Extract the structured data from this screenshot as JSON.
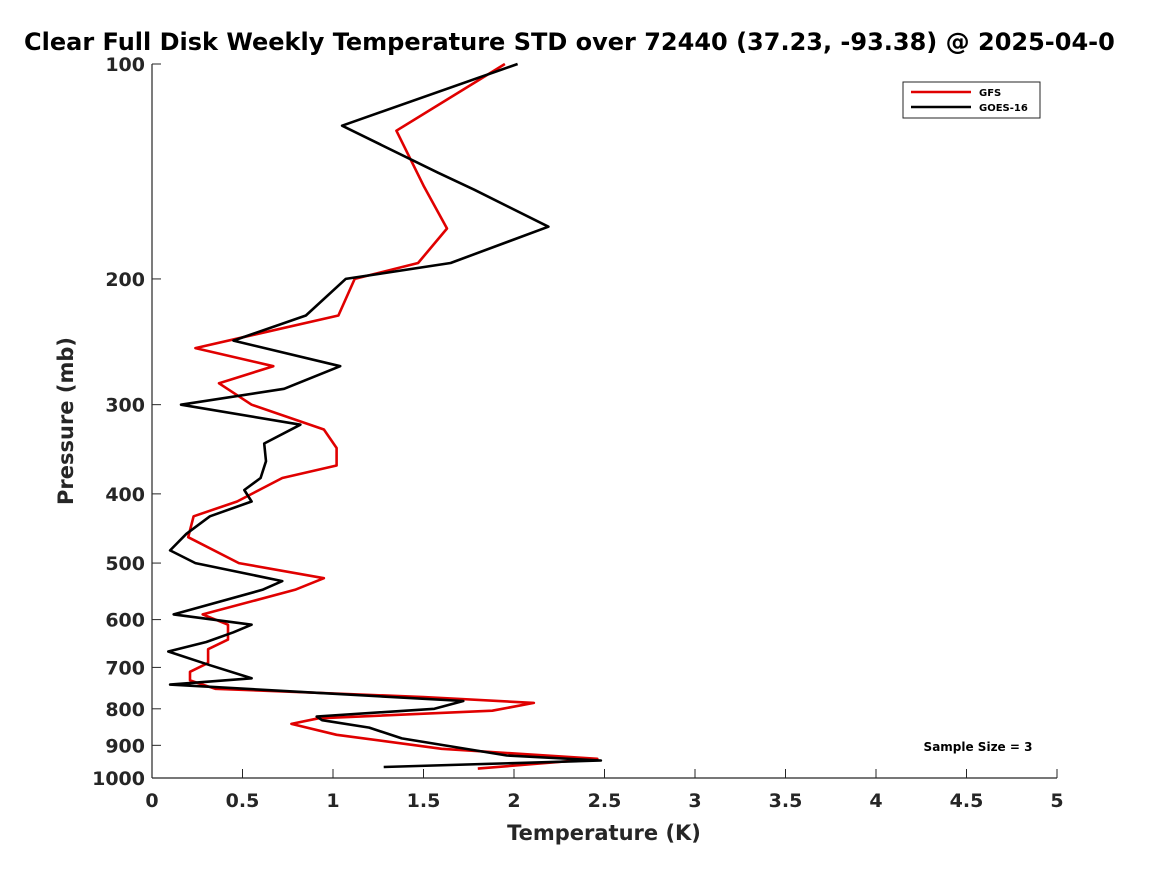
{
  "chart_data": {
    "type": "line",
    "title": "Clear Full Disk Weekly Temperature STD over 72440 (37.23, -93.38) @ 2025-04-0",
    "xlabel": "Temperature (K)",
    "ylabel": "Pressure (mb)",
    "xlim": [
      0,
      5
    ],
    "ylim": [
      100,
      1000
    ],
    "y_scale": "log",
    "y_reversed": true,
    "x_ticks": [
      "0",
      "0.5",
      "1",
      "1.5",
      "2",
      "2.5",
      "3",
      "3.5",
      "4",
      "4.5",
      "5"
    ],
    "x_tick_values": [
      0,
      0.5,
      1,
      1.5,
      2,
      2.5,
      3,
      3.5,
      4,
      4.5,
      5
    ],
    "y_ticks": [
      "100",
      "200",
      "300",
      "400",
      "500",
      "600",
      "700",
      "800",
      "900",
      "1000"
    ],
    "y_tick_values": [
      100,
      200,
      300,
      400,
      500,
      600,
      700,
      800,
      900,
      1000
    ],
    "grid": false,
    "legend_position": "top-right",
    "annotation": "Sample Size = 3",
    "series": [
      {
        "name": "GFS",
        "color": "#e00000",
        "points": [
          [
            1.95,
            100
          ],
          [
            1.35,
            124
          ],
          [
            1.5,
            148
          ],
          [
            1.63,
            170
          ],
          [
            1.47,
            190
          ],
          [
            1.12,
            200
          ],
          [
            1.03,
            225
          ],
          [
            0.24,
            250
          ],
          [
            0.67,
            265
          ],
          [
            0.37,
            280
          ],
          [
            0.55,
            300
          ],
          [
            0.95,
            325
          ],
          [
            1.02,
            345
          ],
          [
            1.02,
            365
          ],
          [
            0.72,
            380
          ],
          [
            0.47,
            410
          ],
          [
            0.23,
            430
          ],
          [
            0.2,
            460
          ],
          [
            0.48,
            500
          ],
          [
            0.95,
            525
          ],
          [
            0.79,
            545
          ],
          [
            0.28,
            590
          ],
          [
            0.42,
            610
          ],
          [
            0.42,
            640
          ],
          [
            0.31,
            660
          ],
          [
            0.31,
            690
          ],
          [
            0.21,
            710
          ],
          [
            0.21,
            730
          ],
          [
            0.35,
            750
          ],
          [
            1.5,
            770
          ],
          [
            2.11,
            785
          ],
          [
            1.88,
            805
          ],
          [
            0.92,
            825
          ],
          [
            0.77,
            840
          ],
          [
            1.02,
            870
          ],
          [
            1.6,
            910
          ],
          [
            2.46,
            940
          ],
          [
            1.8,
            970
          ]
        ]
      },
      {
        "name": "GOES-16",
        "color": "#000000",
        "points": [
          [
            2.02,
            100
          ],
          [
            1.05,
            122
          ],
          [
            1.58,
            142
          ],
          [
            1.78,
            150
          ],
          [
            2.19,
            169
          ],
          [
            1.65,
            190
          ],
          [
            1.07,
            200
          ],
          [
            0.85,
            225
          ],
          [
            0.45,
            244
          ],
          [
            1.04,
            265
          ],
          [
            0.73,
            285
          ],
          [
            0.16,
            300
          ],
          [
            0.82,
            320
          ],
          [
            0.62,
            340
          ],
          [
            0.63,
            360
          ],
          [
            0.6,
            380
          ],
          [
            0.51,
            395
          ],
          [
            0.55,
            410
          ],
          [
            0.32,
            430
          ],
          [
            0.19,
            455
          ],
          [
            0.1,
            480
          ],
          [
            0.24,
            500
          ],
          [
            0.72,
            530
          ],
          [
            0.61,
            545
          ],
          [
            0.12,
            590
          ],
          [
            0.55,
            610
          ],
          [
            0.45,
            625
          ],
          [
            0.3,
            645
          ],
          [
            0.09,
            665
          ],
          [
            0.32,
            695
          ],
          [
            0.55,
            725
          ],
          [
            0.1,
            740
          ],
          [
            1.72,
            780
          ],
          [
            1.56,
            800
          ],
          [
            0.91,
            820
          ],
          [
            0.94,
            830
          ],
          [
            1.2,
            850
          ],
          [
            1.38,
            880
          ],
          [
            1.96,
            930
          ],
          [
            2.48,
            945
          ],
          [
            1.28,
            965
          ]
        ]
      }
    ]
  }
}
